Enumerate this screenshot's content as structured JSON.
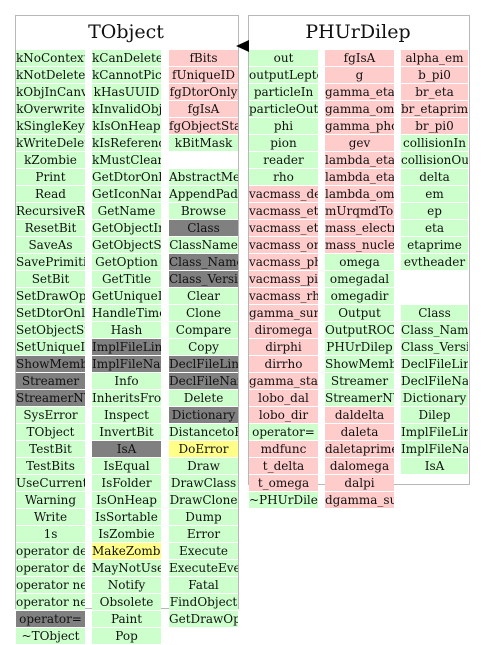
{
  "left_class": {
    "title": "TObject",
    "columns": [
      [
        {
          "t": "kNoContextMenu",
          "c": "green"
        },
        {
          "t": "kNotDeleted",
          "c": "green"
        },
        {
          "t": "kObjInCanvas",
          "c": "green"
        },
        {
          "t": "kOverwrite",
          "c": "green"
        },
        {
          "t": "kSingleKey",
          "c": "green"
        },
        {
          "t": "kWriteDelete",
          "c": "green"
        },
        {
          "t": "kZombie",
          "c": "green"
        },
        {
          "t": "Print",
          "c": "green"
        },
        {
          "t": "Read",
          "c": "green"
        },
        {
          "t": "RecursiveRemove",
          "c": "green"
        },
        {
          "t": "ResetBit",
          "c": "green"
        },
        {
          "t": "SaveAs",
          "c": "green"
        },
        {
          "t": "SavePrimitive",
          "c": "green"
        },
        {
          "t": "SetBit",
          "c": "green"
        },
        {
          "t": "SetDrawOption",
          "c": "green"
        },
        {
          "t": "SetDtorOnly",
          "c": "green"
        },
        {
          "t": "SetObjectStat",
          "c": "green"
        },
        {
          "t": "SetUniqueID",
          "c": "green"
        },
        {
          "t": "ShowMembers",
          "c": "gray"
        },
        {
          "t": "Streamer",
          "c": "gray"
        },
        {
          "t": "StreamerNVirtual",
          "c": "gray"
        },
        {
          "t": "SysError",
          "c": "green"
        },
        {
          "t": "TObject",
          "c": "green"
        },
        {
          "t": "TestBit",
          "c": "green"
        },
        {
          "t": "TestBits",
          "c": "green"
        },
        {
          "t": "UseCurrentStyle",
          "c": "green"
        },
        {
          "t": "Warning",
          "c": "green"
        },
        {
          "t": "Write",
          "c": "green"
        },
        {
          "t": "1s",
          "c": "green"
        },
        {
          "t": "operator delete",
          "c": "green"
        },
        {
          "t": "operator delete[]",
          "c": "green"
        },
        {
          "t": "operator new",
          "c": "green"
        },
        {
          "t": "operator new[]",
          "c": "green"
        },
        {
          "t": "operator=",
          "c": "gray"
        },
        {
          "t": "~TObject",
          "c": "green"
        }
      ],
      [
        {
          "t": "kCanDelete",
          "c": "green"
        },
        {
          "t": "kCannotPick",
          "c": "green"
        },
        {
          "t": "kHasUUID",
          "c": "green"
        },
        {
          "t": "kInvalidObject",
          "c": "green"
        },
        {
          "t": "kIsOnHeap",
          "c": "green"
        },
        {
          "t": "kIsReferenced",
          "c": "green"
        },
        {
          "t": "kMustCleanup",
          "c": "green"
        },
        {
          "t": "GetDtorOnly",
          "c": "green"
        },
        {
          "t": "GetIconName",
          "c": "green"
        },
        {
          "t": "GetName",
          "c": "green"
        },
        {
          "t": "GetObjectInfo",
          "c": "green"
        },
        {
          "t": "GetObjectStat",
          "c": "green"
        },
        {
          "t": "GetOption",
          "c": "green"
        },
        {
          "t": "GetTitle",
          "c": "green"
        },
        {
          "t": "GetUniqueID",
          "c": "green"
        },
        {
          "t": "HandleTimer",
          "c": "green"
        },
        {
          "t": "Hash",
          "c": "green"
        },
        {
          "t": "ImplFileLine",
          "c": "gray"
        },
        {
          "t": "ImplFileName",
          "c": "gray"
        },
        {
          "t": "Info",
          "c": "green"
        },
        {
          "t": "InheritsFrom",
          "c": "green"
        },
        {
          "t": "Inspect",
          "c": "green"
        },
        {
          "t": "InvertBit",
          "c": "green"
        },
        {
          "t": "IsA",
          "c": "gray"
        },
        {
          "t": "IsEqual",
          "c": "green"
        },
        {
          "t": "IsFolder",
          "c": "green"
        },
        {
          "t": "IsOnHeap",
          "c": "green"
        },
        {
          "t": "IsSortable",
          "c": "green"
        },
        {
          "t": "IsZombie",
          "c": "green"
        },
        {
          "t": "MakeZombie",
          "c": "yellow"
        },
        {
          "t": "MayNotUse",
          "c": "green"
        },
        {
          "t": "Notify",
          "c": "green"
        },
        {
          "t": "Obsolete",
          "c": "green"
        },
        {
          "t": "Paint",
          "c": "green"
        },
        {
          "t": "Pop",
          "c": "green"
        }
      ],
      [
        {
          "t": "fBits",
          "c": "pink"
        },
        {
          "t": "fUniqueID",
          "c": "pink"
        },
        {
          "t": "fgDtorOnly",
          "c": "pink"
        },
        {
          "t": "fgIsA",
          "c": "pink"
        },
        {
          "t": "fgObjectStat",
          "c": "pink"
        },
        {
          "t": "kBitMask",
          "c": "green"
        },
        {
          "t": "",
          "c": "none"
        },
        {
          "t": "AbstractMethod",
          "c": "green"
        },
        {
          "t": "AppendPad",
          "c": "green"
        },
        {
          "t": "Browse",
          "c": "green"
        },
        {
          "t": "Class",
          "c": "gray"
        },
        {
          "t": "ClassName",
          "c": "green"
        },
        {
          "t": "Class_Name",
          "c": "gray"
        },
        {
          "t": "Class_Version",
          "c": "gray"
        },
        {
          "t": "Clear",
          "c": "green"
        },
        {
          "t": "Clone",
          "c": "green"
        },
        {
          "t": "Compare",
          "c": "green"
        },
        {
          "t": "Copy",
          "c": "green"
        },
        {
          "t": "DeclFileLine",
          "c": "gray"
        },
        {
          "t": "DeclFileName",
          "c": "gray"
        },
        {
          "t": "Delete",
          "c": "green"
        },
        {
          "t": "Dictionary",
          "c": "gray"
        },
        {
          "t": "DistancetoPrimitive",
          "c": "green"
        },
        {
          "t": "DoError",
          "c": "yellow"
        },
        {
          "t": "Draw",
          "c": "green"
        },
        {
          "t": "DrawClass",
          "c": "green"
        },
        {
          "t": "DrawClone",
          "c": "green"
        },
        {
          "t": "Dump",
          "c": "green"
        },
        {
          "t": "Error",
          "c": "green"
        },
        {
          "t": "Execute",
          "c": "green"
        },
        {
          "t": "ExecuteEvent",
          "c": "green"
        },
        {
          "t": "Fatal",
          "c": "green"
        },
        {
          "t": "FindObject",
          "c": "green"
        },
        {
          "t": "GetDrawOption",
          "c": "green"
        }
      ]
    ]
  },
  "right_class": {
    "title": "PHUrDilep",
    "columns": [
      [
        {
          "t": "out",
          "c": "green"
        },
        {
          "t": "outputLeptons",
          "c": "green"
        },
        {
          "t": "particleIn",
          "c": "green"
        },
        {
          "t": "particleOut",
          "c": "green"
        },
        {
          "t": "phi",
          "c": "green"
        },
        {
          "t": "pion",
          "c": "green"
        },
        {
          "t": "reader",
          "c": "green"
        },
        {
          "t": "rho",
          "c": "green"
        },
        {
          "t": "vacmass_delta",
          "c": "pink"
        },
        {
          "t": "vacmass_eta",
          "c": "pink"
        },
        {
          "t": "vacmass_etaprime",
          "c": "pink"
        },
        {
          "t": "vacmass_omega",
          "c": "pink"
        },
        {
          "t": "vacmass_phi",
          "c": "pink"
        },
        {
          "t": "vacmass_pi0",
          "c": "pink"
        },
        {
          "t": "vacmass_rho",
          "c": "pink"
        },
        {
          "t": "gamma_sum_delta",
          "c": "pink"
        },
        {
          "t": "diromega",
          "c": "pink"
        },
        {
          "t": "dirphi",
          "c": "pink"
        },
        {
          "t": "dirrho",
          "c": "pink"
        },
        {
          "t": "gamma_star",
          "c": "pink"
        },
        {
          "t": "lobo_dal",
          "c": "pink"
        },
        {
          "t": "lobo_dir",
          "c": "pink"
        },
        {
          "t": "operator=",
          "c": "green"
        },
        {
          "t": "mdfunc",
          "c": "pink"
        },
        {
          "t": "t_delta",
          "c": "pink"
        },
        {
          "t": "t_omega",
          "c": "pink"
        },
        {
          "t": "~PHUrDilep",
          "c": "green"
        }
      ],
      [
        {
          "t": "fgIsA",
          "c": "pink"
        },
        {
          "t": "g",
          "c": "pink"
        },
        {
          "t": "gamma_etaprime",
          "c": "pink"
        },
        {
          "t": "gamma_omega",
          "c": "pink"
        },
        {
          "t": "gamma_photon",
          "c": "pink"
        },
        {
          "t": "gev",
          "c": "pink"
        },
        {
          "t": "lambda_eta",
          "c": "pink"
        },
        {
          "t": "lambda_etaprime",
          "c": "pink"
        },
        {
          "t": "lambda_omega",
          "c": "pink"
        },
        {
          "t": "mUrqmdToPdg",
          "c": "pink"
        },
        {
          "t": "mass_electron",
          "c": "pink"
        },
        {
          "t": "mass_nucleon",
          "c": "pink"
        },
        {
          "t": "omega",
          "c": "green"
        },
        {
          "t": "omegadal",
          "c": "green"
        },
        {
          "t": "omegadir",
          "c": "green"
        },
        {
          "t": "Output",
          "c": "green"
        },
        {
          "t": "OutputROOT",
          "c": "green"
        },
        {
          "t": "PHUrDilep",
          "c": "green"
        },
        {
          "t": "ShowMembers",
          "c": "green"
        },
        {
          "t": "Streamer",
          "c": "green"
        },
        {
          "t": "StreamerNVirtual",
          "c": "green"
        },
        {
          "t": "daldelta",
          "c": "pink"
        },
        {
          "t": "daleta",
          "c": "pink"
        },
        {
          "t": "daletaprime",
          "c": "pink"
        },
        {
          "t": "dalomega",
          "c": "pink"
        },
        {
          "t": "dalpi",
          "c": "pink"
        },
        {
          "t": "dgamma_sum",
          "c": "pink"
        }
      ],
      [
        {
          "t": "alpha_em",
          "c": "pink"
        },
        {
          "t": "b_pi0",
          "c": "pink"
        },
        {
          "t": "br_eta",
          "c": "pink"
        },
        {
          "t": "br_etaprime",
          "c": "pink"
        },
        {
          "t": "br_pi0",
          "c": "pink"
        },
        {
          "t": "collisionIn",
          "c": "green"
        },
        {
          "t": "collisionOut",
          "c": "green"
        },
        {
          "t": "delta",
          "c": "green"
        },
        {
          "t": "em",
          "c": "green"
        },
        {
          "t": "ep",
          "c": "green"
        },
        {
          "t": "eta",
          "c": "green"
        },
        {
          "t": "etaprime",
          "c": "green"
        },
        {
          "t": "evtheader",
          "c": "green"
        },
        {
          "t": "",
          "c": "none"
        },
        {
          "t": "",
          "c": "none"
        },
        {
          "t": "Class",
          "c": "green"
        },
        {
          "t": "Class_Name",
          "c": "green"
        },
        {
          "t": "Class_Version",
          "c": "green"
        },
        {
          "t": "DeclFileLine",
          "c": "green"
        },
        {
          "t": "DeclFileName",
          "c": "green"
        },
        {
          "t": "Dictionary",
          "c": "green"
        },
        {
          "t": "Dilep",
          "c": "green"
        },
        {
          "t": "ImplFileLine",
          "c": "green"
        },
        {
          "t": "ImplFileName",
          "c": "green"
        },
        {
          "t": "IsA",
          "c": "green"
        }
      ]
    ]
  }
}
